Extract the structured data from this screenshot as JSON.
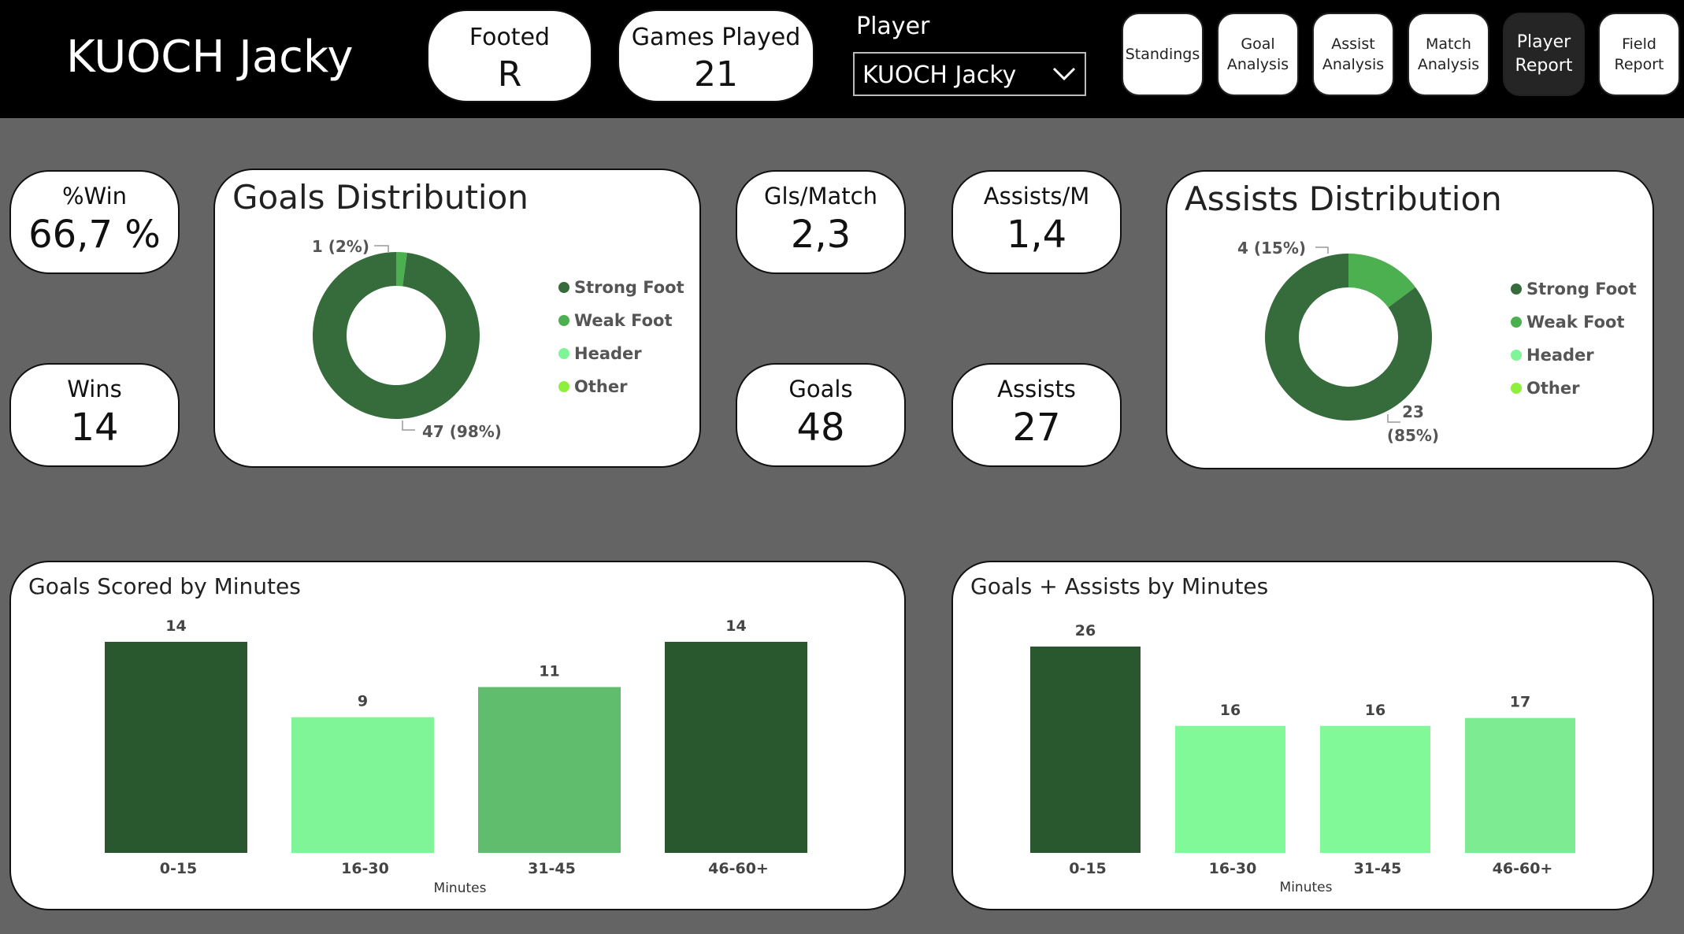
{
  "header": {
    "player_name": "KUOCH Jacky",
    "footed": {
      "label": "Footed",
      "value": "R"
    },
    "games_played": {
      "label": "Games Played",
      "value": "21"
    },
    "player_select": {
      "label": "Player",
      "value": "KUOCH Jacky"
    },
    "nav": [
      {
        "line1": "Standings",
        "line2": "",
        "active": false
      },
      {
        "line1": "Goal",
        "line2": "Analysis",
        "active": false
      },
      {
        "line1": "Assist",
        "line2": "Analysis",
        "active": false
      },
      {
        "line1": "Match",
        "line2": "Analysis",
        "active": false
      },
      {
        "line1": "Player",
        "line2": "Report",
        "active": true
      },
      {
        "line1": "Field",
        "line2": "Report",
        "active": false
      }
    ]
  },
  "kpis": {
    "win_pct": {
      "label": "%Win",
      "value": "66,7 %"
    },
    "wins": {
      "label": "Wins",
      "value": "14"
    },
    "gls_match": {
      "label": "Gls/Match",
      "value": "2,3"
    },
    "goals": {
      "label": "Goals",
      "value": "48"
    },
    "assists_m": {
      "label": "Assists/M",
      "value": "1,4"
    },
    "assists": {
      "label": "Assists",
      "value": "27"
    }
  },
  "colors": {
    "strong_foot": "#366b3c",
    "weak_foot": "#4caf50",
    "header": "#7ff598",
    "other": "#8ef03c"
  },
  "goals_distribution": {
    "title": "Goals Distribution",
    "legend": [
      "Strong Foot",
      "Weak Foot",
      "Header",
      "Other"
    ],
    "labels": {
      "small": "1 (2%)",
      "large": "47 (98%)"
    }
  },
  "assists_distribution": {
    "title": "Assists Distribution",
    "legend": [
      "Strong Foot",
      "Weak Foot",
      "Header",
      "Other"
    ],
    "labels": {
      "small": "4 (15%)",
      "large_line1": "23",
      "large_line2": "(85%)"
    }
  },
  "goals_by_minutes": {
    "title": "Goals Scored by Minutes",
    "xlabel": "Minutes"
  },
  "ga_by_minutes": {
    "title": "Goals + Assists by Minutes",
    "xlabel": "Minutes"
  },
  "chart_data": [
    {
      "type": "pie",
      "title": "Goals Distribution",
      "categories": [
        "Strong Foot",
        "Weak Foot",
        "Header",
        "Other"
      ],
      "values": [
        47,
        1,
        0,
        0
      ]
    },
    {
      "type": "pie",
      "title": "Assists Distribution",
      "categories": [
        "Strong Foot",
        "Weak Foot",
        "Header",
        "Other"
      ],
      "values": [
        23,
        4,
        0,
        0
      ]
    },
    {
      "type": "bar",
      "title": "Goals Scored by Minutes",
      "categories": [
        "0-15",
        "16-30",
        "31-45",
        "46-60+"
      ],
      "values": [
        14,
        9,
        11,
        14
      ],
      "bar_colors": [
        "#29582f",
        "#7ff598",
        "#5fbd6d",
        "#29582f"
      ],
      "xlabel": "Minutes",
      "ylim": [
        0,
        14
      ]
    },
    {
      "type": "bar",
      "title": "Goals + Assists by Minutes",
      "categories": [
        "0-15",
        "16-30",
        "31-45",
        "46-60+"
      ],
      "values": [
        26,
        16,
        16,
        17
      ],
      "bar_colors": [
        "#29582f",
        "#82f998",
        "#82f998",
        "#7deb92"
      ],
      "xlabel": "Minutes",
      "ylim": [
        0,
        26
      ]
    }
  ]
}
